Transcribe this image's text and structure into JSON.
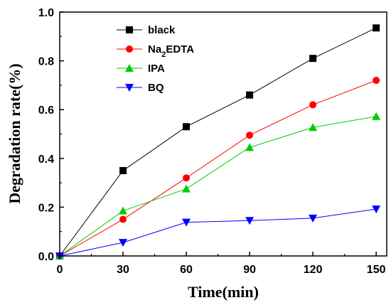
{
  "chart_data": {
    "type": "line",
    "xlabel": "Time(min)",
    "ylabel": "Degradation rate(%)",
    "x": [
      0,
      30,
      60,
      90,
      120,
      150
    ],
    "xticks": [
      "0",
      "30",
      "60",
      "90",
      "120",
      "150"
    ],
    "yticks": [
      "0.0",
      "0.2",
      "0.4",
      "0.6",
      "0.8",
      "1.0"
    ],
    "xlim": [
      0,
      155
    ],
    "ylim": [
      0,
      1.0
    ],
    "legend_position": "top-left",
    "grid": false,
    "series": [
      {
        "name": "black",
        "marker": "square",
        "color": "#000000",
        "values": [
          0,
          0.35,
          0.53,
          0.66,
          0.81,
          0.935
        ]
      },
      {
        "name": "Na2EDTA",
        "marker": "circle",
        "color": "#ff0000",
        "values": [
          0,
          0.15,
          0.32,
          0.495,
          0.62,
          0.72
        ]
      },
      {
        "name": "IPA",
        "marker": "triangle-up",
        "color": "#00cc00",
        "values": [
          0,
          0.185,
          0.275,
          0.445,
          0.527,
          0.572
        ]
      },
      {
        "name": "BQ",
        "marker": "triangle-down",
        "color": "#0000ff",
        "values": [
          0,
          0.055,
          0.138,
          0.145,
          0.155,
          0.192
        ]
      }
    ]
  }
}
